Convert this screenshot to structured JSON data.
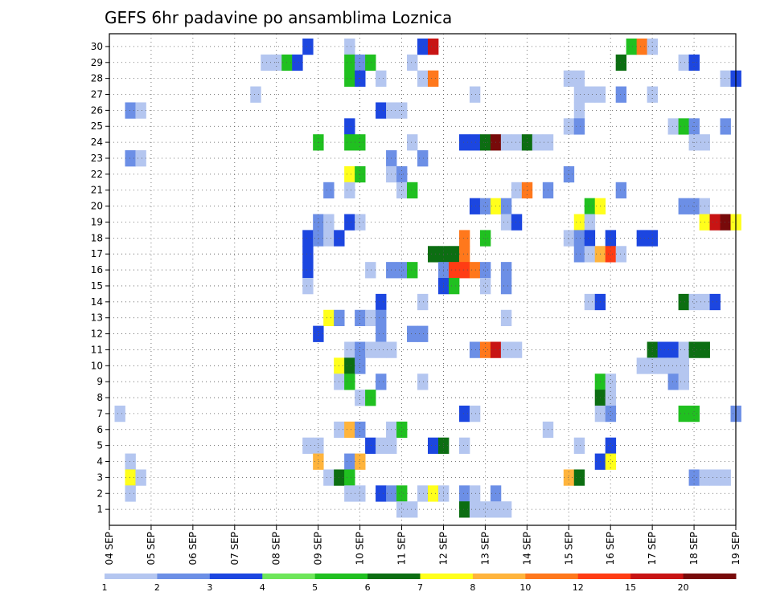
{
  "chart_data": {
    "type": "heatmap",
    "title": "GEFS 6hr padavine po ansamblima Loznica",
    "xlabel": "",
    "ylabel": "",
    "x_tick_labels": [
      "04 SEP",
      "05 SEP",
      "06 SEP",
      "07 SEP",
      "08 SEP",
      "09 SEP",
      "10 SEP",
      "11 SEP",
      "12 SEP",
      "13 SEP",
      "14 SEP",
      "15 SEP",
      "16 SEP",
      "17 SEP",
      "18 SEP",
      "19 SEP"
    ],
    "x_unit": "6-hour steps from 04 SEP 00Z",
    "xlim": [
      0,
      60
    ],
    "y_members": [
      1,
      2,
      3,
      4,
      5,
      6,
      7,
      8,
      9,
      10,
      11,
      12,
      13,
      14,
      15,
      16,
      17,
      18,
      19,
      20,
      21,
      22,
      23,
      24,
      25,
      26,
      27,
      28,
      29,
      30
    ],
    "grid": "dotted",
    "legend": {
      "placement": "bottom",
      "labels": [
        "1",
        "2",
        "3",
        "4",
        "5",
        "6",
        "7",
        "8",
        "10",
        "12",
        "15",
        "20"
      ],
      "colors": [
        "#b4c6f0",
        "#6c8fe6",
        "#1c46e0",
        "#6ee65a",
        "#20c020",
        "#0c6e12",
        "#ffff1c",
        "#ffb43c",
        "#ff781c",
        "#ff3c14",
        "#c81414",
        "#780a0a"
      ]
    },
    "cells": [
      {
        "m": 30,
        "t": 19,
        "v": 3
      },
      {
        "m": 30,
        "t": 23,
        "v": 1
      },
      {
        "m": 30,
        "t": 30,
        "v": 3
      },
      {
        "m": 30,
        "t": 31,
        "v": 15
      },
      {
        "m": 30,
        "t": 50,
        "v": 5
      },
      {
        "m": 30,
        "t": 51,
        "v": 10
      },
      {
        "m": 30,
        "t": 52,
        "v": 1
      },
      {
        "m": 29,
        "t": 15,
        "v": 1
      },
      {
        "m": 29,
        "t": 16,
        "v": 1
      },
      {
        "m": 29,
        "t": 17,
        "v": 5
      },
      {
        "m": 29,
        "t": 18,
        "v": 3
      },
      {
        "m": 29,
        "t": 23,
        "v": 5
      },
      {
        "m": 29,
        "t": 24,
        "v": 2
      },
      {
        "m": 29,
        "t": 25,
        "v": 5
      },
      {
        "m": 29,
        "t": 29,
        "v": 1
      },
      {
        "m": 29,
        "t": 49,
        "v": 6
      },
      {
        "m": 29,
        "t": 55,
        "v": 1
      },
      {
        "m": 29,
        "t": 56,
        "v": 3
      },
      {
        "m": 28,
        "t": 23,
        "v": 5
      },
      {
        "m": 28,
        "t": 24,
        "v": 3
      },
      {
        "m": 28,
        "t": 26,
        "v": 1
      },
      {
        "m": 28,
        "t": 30,
        "v": 1
      },
      {
        "m": 28,
        "t": 31,
        "v": 10
      },
      {
        "m": 28,
        "t": 44,
        "v": 1
      },
      {
        "m": 28,
        "t": 45,
        "v": 1
      },
      {
        "m": 28,
        "t": 59,
        "v": 1
      },
      {
        "m": 28,
        "t": 60,
        "v": 3
      },
      {
        "m": 27,
        "t": 14,
        "v": 1
      },
      {
        "m": 27,
        "t": 35,
        "v": 1
      },
      {
        "m": 27,
        "t": 45,
        "v": 1
      },
      {
        "m": 27,
        "t": 46,
        "v": 1
      },
      {
        "m": 27,
        "t": 47,
        "v": 1
      },
      {
        "m": 27,
        "t": 49,
        "v": 2
      },
      {
        "m": 27,
        "t": 52,
        "v": 1
      },
      {
        "m": 26,
        "t": 2,
        "v": 2
      },
      {
        "m": 26,
        "t": 3,
        "v": 1
      },
      {
        "m": 26,
        "t": 26,
        "v": 3
      },
      {
        "m": 26,
        "t": 27,
        "v": 1
      },
      {
        "m": 26,
        "t": 28,
        "v": 1
      },
      {
        "m": 26,
        "t": 45,
        "v": 1
      },
      {
        "m": 25,
        "t": 23,
        "v": 3
      },
      {
        "m": 25,
        "t": 44,
        "v": 1
      },
      {
        "m": 25,
        "t": 45,
        "v": 2
      },
      {
        "m": 25,
        "t": 54,
        "v": 1
      },
      {
        "m": 25,
        "t": 55,
        "v": 5
      },
      {
        "m": 25,
        "t": 56,
        "v": 2
      },
      {
        "m": 25,
        "t": 59,
        "v": 2
      },
      {
        "m": 24,
        "t": 20,
        "v": 5
      },
      {
        "m": 24,
        "t": 23,
        "v": 5
      },
      {
        "m": 24,
        "t": 24,
        "v": 5
      },
      {
        "m": 24,
        "t": 29,
        "v": 1
      },
      {
        "m": 24,
        "t": 34,
        "v": 3
      },
      {
        "m": 24,
        "t": 35,
        "v": 3
      },
      {
        "m": 24,
        "t": 36,
        "v": 6
      },
      {
        "m": 24,
        "t": 37,
        "v": 20
      },
      {
        "m": 24,
        "t": 38,
        "v": 1
      },
      {
        "m": 24,
        "t": 39,
        "v": 1
      },
      {
        "m": 24,
        "t": 40,
        "v": 6
      },
      {
        "m": 24,
        "t": 41,
        "v": 1
      },
      {
        "m": 24,
        "t": 42,
        "v": 1
      },
      {
        "m": 24,
        "t": 56,
        "v": 1
      },
      {
        "m": 24,
        "t": 57,
        "v": 1
      },
      {
        "m": 23,
        "t": 2,
        "v": 2
      },
      {
        "m": 23,
        "t": 3,
        "v": 1
      },
      {
        "m": 23,
        "t": 27,
        "v": 2
      },
      {
        "m": 23,
        "t": 30,
        "v": 2
      },
      {
        "m": 22,
        "t": 23,
        "v": 7
      },
      {
        "m": 22,
        "t": 24,
        "v": 5
      },
      {
        "m": 22,
        "t": 27,
        "v": 1
      },
      {
        "m": 22,
        "t": 28,
        "v": 2
      },
      {
        "m": 22,
        "t": 44,
        "v": 2
      },
      {
        "m": 21,
        "t": 21,
        "v": 2
      },
      {
        "m": 21,
        "t": 23,
        "v": 1
      },
      {
        "m": 21,
        "t": 28,
        "v": 1
      },
      {
        "m": 21,
        "t": 29,
        "v": 5
      },
      {
        "m": 21,
        "t": 39,
        "v": 1
      },
      {
        "m": 21,
        "t": 40,
        "v": 10
      },
      {
        "m": 21,
        "t": 42,
        "v": 2
      },
      {
        "m": 21,
        "t": 49,
        "v": 2
      },
      {
        "m": 20,
        "t": 35,
        "v": 3
      },
      {
        "m": 20,
        "t": 36,
        "v": 2
      },
      {
        "m": 20,
        "t": 37,
        "v": 7
      },
      {
        "m": 20,
        "t": 38,
        "v": 2
      },
      {
        "m": 20,
        "t": 46,
        "v": 5
      },
      {
        "m": 20,
        "t": 47,
        "v": 7
      },
      {
        "m": 20,
        "t": 55,
        "v": 2
      },
      {
        "m": 20,
        "t": 56,
        "v": 2
      },
      {
        "m": 20,
        "t": 57,
        "v": 1
      },
      {
        "m": 19,
        "t": 20,
        "v": 2
      },
      {
        "m": 19,
        "t": 21,
        "v": 1
      },
      {
        "m": 19,
        "t": 23,
        "v": 3
      },
      {
        "m": 19,
        "t": 24,
        "v": 1
      },
      {
        "m": 19,
        "t": 38,
        "v": 1
      },
      {
        "m": 19,
        "t": 39,
        "v": 3
      },
      {
        "m": 19,
        "t": 45,
        "v": 7
      },
      {
        "m": 19,
        "t": 46,
        "v": 1
      },
      {
        "m": 19,
        "t": 57,
        "v": 7
      },
      {
        "m": 19,
        "t": 58,
        "v": 15
      },
      {
        "m": 19,
        "t": 59,
        "v": 20
      },
      {
        "m": 19,
        "t": 60,
        "v": 7
      },
      {
        "m": 18,
        "t": 19,
        "v": 3
      },
      {
        "m": 18,
        "t": 20,
        "v": 2
      },
      {
        "m": 18,
        "t": 21,
        "v": 1
      },
      {
        "m": 18,
        "t": 22,
        "v": 3
      },
      {
        "m": 18,
        "t": 34,
        "v": 10
      },
      {
        "m": 18,
        "t": 36,
        "v": 5
      },
      {
        "m": 18,
        "t": 44,
        "v": 1
      },
      {
        "m": 18,
        "t": 45,
        "v": 2
      },
      {
        "m": 18,
        "t": 46,
        "v": 3
      },
      {
        "m": 18,
        "t": 48,
        "v": 3
      },
      {
        "m": 18,
        "t": 51,
        "v": 3
      },
      {
        "m": 18,
        "t": 52,
        "v": 3
      },
      {
        "m": 17,
        "t": 19,
        "v": 3
      },
      {
        "m": 17,
        "t": 31,
        "v": 6
      },
      {
        "m": 17,
        "t": 32,
        "v": 6
      },
      {
        "m": 17,
        "t": 33,
        "v": 6
      },
      {
        "m": 17,
        "t": 34,
        "v": 10
      },
      {
        "m": 17,
        "t": 45,
        "v": 2
      },
      {
        "m": 17,
        "t": 46,
        "v": 1
      },
      {
        "m": 17,
        "t": 47,
        "v": 8
      },
      {
        "m": 17,
        "t": 48,
        "v": 12
      },
      {
        "m": 17,
        "t": 49,
        "v": 1
      },
      {
        "m": 16,
        "t": 19,
        "v": 3
      },
      {
        "m": 16,
        "t": 25,
        "v": 1
      },
      {
        "m": 16,
        "t": 27,
        "v": 2
      },
      {
        "m": 16,
        "t": 28,
        "v": 2
      },
      {
        "m": 16,
        "t": 29,
        "v": 5
      },
      {
        "m": 16,
        "t": 32,
        "v": 2
      },
      {
        "m": 16,
        "t": 33,
        "v": 12
      },
      {
        "m": 16,
        "t": 34,
        "v": 12
      },
      {
        "m": 16,
        "t": 35,
        "v": 10
      },
      {
        "m": 16,
        "t": 36,
        "v": 2
      },
      {
        "m": 16,
        "t": 38,
        "v": 2
      },
      {
        "m": 15,
        "t": 19,
        "v": 1
      },
      {
        "m": 15,
        "t": 32,
        "v": 3
      },
      {
        "m": 15,
        "t": 33,
        "v": 5
      },
      {
        "m": 15,
        "t": 36,
        "v": 1
      },
      {
        "m": 15,
        "t": 38,
        "v": 2
      },
      {
        "m": 14,
        "t": 26,
        "v": 3
      },
      {
        "m": 14,
        "t": 30,
        "v": 1
      },
      {
        "m": 14,
        "t": 46,
        "v": 1
      },
      {
        "m": 14,
        "t": 47,
        "v": 3
      },
      {
        "m": 14,
        "t": 55,
        "v": 6
      },
      {
        "m": 14,
        "t": 56,
        "v": 1
      },
      {
        "m": 14,
        "t": 57,
        "v": 1
      },
      {
        "m": 14,
        "t": 58,
        "v": 3
      },
      {
        "m": 13,
        "t": 21,
        "v": 7
      },
      {
        "m": 13,
        "t": 22,
        "v": 2
      },
      {
        "m": 13,
        "t": 24,
        "v": 2
      },
      {
        "m": 13,
        "t": 25,
        "v": 1
      },
      {
        "m": 13,
        "t": 26,
        "v": 2
      },
      {
        "m": 13,
        "t": 38,
        "v": 1
      },
      {
        "m": 12,
        "t": 20,
        "v": 3
      },
      {
        "m": 12,
        "t": 26,
        "v": 2
      },
      {
        "m": 12,
        "t": 29,
        "v": 2
      },
      {
        "m": 12,
        "t": 30,
        "v": 2
      },
      {
        "m": 11,
        "t": 23,
        "v": 1
      },
      {
        "m": 11,
        "t": 24,
        "v": 2
      },
      {
        "m": 11,
        "t": 25,
        "v": 1
      },
      {
        "m": 11,
        "t": 26,
        "v": 1
      },
      {
        "m": 11,
        "t": 27,
        "v": 1
      },
      {
        "m": 11,
        "t": 35,
        "v": 2
      },
      {
        "m": 11,
        "t": 36,
        "v": 10
      },
      {
        "m": 11,
        "t": 37,
        "v": 15
      },
      {
        "m": 11,
        "t": 38,
        "v": 1
      },
      {
        "m": 11,
        "t": 39,
        "v": 1
      },
      {
        "m": 11,
        "t": 52,
        "v": 6
      },
      {
        "m": 11,
        "t": 53,
        "v": 3
      },
      {
        "m": 11,
        "t": 54,
        "v": 3
      },
      {
        "m": 11,
        "t": 55,
        "v": 1
      },
      {
        "m": 11,
        "t": 56,
        "v": 6
      },
      {
        "m": 11,
        "t": 57,
        "v": 6
      },
      {
        "m": 10,
        "t": 22,
        "v": 7
      },
      {
        "m": 10,
        "t": 23,
        "v": 6
      },
      {
        "m": 10,
        "t": 24,
        "v": 2
      },
      {
        "m": 10,
        "t": 51,
        "v": 1
      },
      {
        "m": 10,
        "t": 52,
        "v": 1
      },
      {
        "m": 10,
        "t": 53,
        "v": 1
      },
      {
        "m": 10,
        "t": 54,
        "v": 1
      },
      {
        "m": 10,
        "t": 55,
        "v": 1
      },
      {
        "m": 9,
        "t": 22,
        "v": 1
      },
      {
        "m": 9,
        "t": 23,
        "v": 5
      },
      {
        "m": 9,
        "t": 26,
        "v": 2
      },
      {
        "m": 9,
        "t": 30,
        "v": 1
      },
      {
        "m": 9,
        "t": 47,
        "v": 5
      },
      {
        "m": 9,
        "t": 48,
        "v": 1
      },
      {
        "m": 9,
        "t": 54,
        "v": 2
      },
      {
        "m": 9,
        "t": 55,
        "v": 1
      },
      {
        "m": 8,
        "t": 24,
        "v": 1
      },
      {
        "m": 8,
        "t": 25,
        "v": 5
      },
      {
        "m": 8,
        "t": 47,
        "v": 6
      },
      {
        "m": 8,
        "t": 48,
        "v": 1
      },
      {
        "m": 7,
        "t": 1,
        "v": 1
      },
      {
        "m": 7,
        "t": 34,
        "v": 3
      },
      {
        "m": 7,
        "t": 35,
        "v": 1
      },
      {
        "m": 7,
        "t": 47,
        "v": 1
      },
      {
        "m": 7,
        "t": 48,
        "v": 2
      },
      {
        "m": 7,
        "t": 55,
        "v": 5
      },
      {
        "m": 7,
        "t": 56,
        "v": 5
      },
      {
        "m": 7,
        "t": 60,
        "v": 2
      },
      {
        "m": 6,
        "t": 22,
        "v": 1
      },
      {
        "m": 6,
        "t": 23,
        "v": 8
      },
      {
        "m": 6,
        "t": 24,
        "v": 2
      },
      {
        "m": 6,
        "t": 27,
        "v": 1
      },
      {
        "m": 6,
        "t": 28,
        "v": 5
      },
      {
        "m": 6,
        "t": 42,
        "v": 1
      },
      {
        "m": 5,
        "t": 19,
        "v": 1
      },
      {
        "m": 5,
        "t": 20,
        "v": 1
      },
      {
        "m": 5,
        "t": 25,
        "v": 3
      },
      {
        "m": 5,
        "t": 26,
        "v": 1
      },
      {
        "m": 5,
        "t": 27,
        "v": 1
      },
      {
        "m": 5,
        "t": 31,
        "v": 3
      },
      {
        "m": 5,
        "t": 32,
        "v": 6
      },
      {
        "m": 5,
        "t": 34,
        "v": 1
      },
      {
        "m": 5,
        "t": 45,
        "v": 1
      },
      {
        "m": 5,
        "t": 48,
        "v": 3
      },
      {
        "m": 4,
        "t": 2,
        "v": 1
      },
      {
        "m": 4,
        "t": 20,
        "v": 8
      },
      {
        "m": 4,
        "t": 23,
        "v": 2
      },
      {
        "m": 4,
        "t": 24,
        "v": 8
      },
      {
        "m": 4,
        "t": 47,
        "v": 3
      },
      {
        "m": 4,
        "t": 48,
        "v": 7
      },
      {
        "m": 3,
        "t": 2,
        "v": 7
      },
      {
        "m": 3,
        "t": 3,
        "v": 1
      },
      {
        "m": 3,
        "t": 21,
        "v": 1
      },
      {
        "m": 3,
        "t": 22,
        "v": 6
      },
      {
        "m": 3,
        "t": 23,
        "v": 5
      },
      {
        "m": 3,
        "t": 44,
        "v": 8
      },
      {
        "m": 3,
        "t": 45,
        "v": 6
      },
      {
        "m": 3,
        "t": 56,
        "v": 2
      },
      {
        "m": 3,
        "t": 57,
        "v": 1
      },
      {
        "m": 3,
        "t": 58,
        "v": 1
      },
      {
        "m": 3,
        "t": 59,
        "v": 1
      },
      {
        "m": 2,
        "t": 2,
        "v": 1
      },
      {
        "m": 2,
        "t": 23,
        "v": 1
      },
      {
        "m": 2,
        "t": 24,
        "v": 1
      },
      {
        "m": 2,
        "t": 26,
        "v": 3
      },
      {
        "m": 2,
        "t": 27,
        "v": 2
      },
      {
        "m": 2,
        "t": 28,
        "v": 5
      },
      {
        "m": 2,
        "t": 30,
        "v": 1
      },
      {
        "m": 2,
        "t": 31,
        "v": 7
      },
      {
        "m": 2,
        "t": 32,
        "v": 1
      },
      {
        "m": 2,
        "t": 34,
        "v": 2
      },
      {
        "m": 2,
        "t": 35,
        "v": 1
      },
      {
        "m": 2,
        "t": 37,
        "v": 2
      },
      {
        "m": 1,
        "t": 28,
        "v": 1
      },
      {
        "m": 1,
        "t": 29,
        "v": 1
      },
      {
        "m": 1,
        "t": 34,
        "v": 6
      },
      {
        "m": 1,
        "t": 35,
        "v": 1
      },
      {
        "m": 1,
        "t": 36,
        "v": 1
      },
      {
        "m": 1,
        "t": 37,
        "v": 1
      },
      {
        "m": 1,
        "t": 38,
        "v": 1
      }
    ]
  }
}
